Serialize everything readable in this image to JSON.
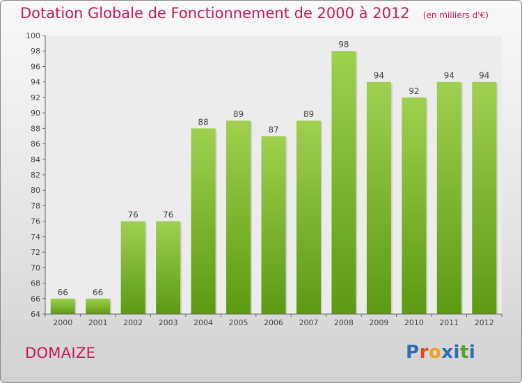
{
  "title": "Dotation Globale de Fonctionnement de 2000 à 2012",
  "unit_note": "(en milliers d'€)",
  "location": "DOMAIZE",
  "logo": {
    "text": "Proxiti",
    "letter_colors": [
      "#2e6db5",
      "#e24a1d",
      "#f0a31b",
      "#2e6db5",
      "#2e6db5",
      "#5aa028",
      "#2e6db5"
    ]
  },
  "colors": {
    "title": "#c2185b",
    "bar_top": "#9fd04f",
    "bar_bottom": "#5c9a12"
  },
  "chart_data": {
    "type": "bar",
    "categories": [
      "2000",
      "2001",
      "2002",
      "2003",
      "2004",
      "2005",
      "2006",
      "2007",
      "2008",
      "2009",
      "2010",
      "2011",
      "2012"
    ],
    "values": [
      66,
      66,
      76,
      76,
      88,
      89,
      87,
      89,
      98,
      94,
      92,
      94,
      94
    ],
    "title": "Dotation Globale de Fonctionnement de 2000 à 2012",
    "xlabel": "",
    "ylabel": "",
    "ylim": [
      64,
      100
    ],
    "yticks": [
      64,
      66,
      68,
      70,
      72,
      74,
      76,
      78,
      80,
      82,
      84,
      86,
      88,
      90,
      92,
      94,
      96,
      98,
      100
    ],
    "grid": false,
    "legend": "none"
  }
}
